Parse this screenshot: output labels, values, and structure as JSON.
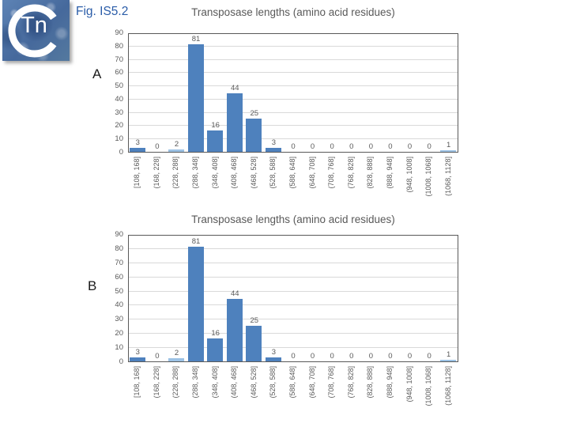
{
  "logo": {
    "text": "Tn"
  },
  "figure_label": "Fig. IS5.2",
  "colors": {
    "bar": "#4e81bd",
    "bar_light": "#9cc2e5",
    "grid": "#d9d9d9",
    "frame": "#595959",
    "text": "#595959",
    "figure_label": "#2a5ca8"
  },
  "chart_data": [
    {
      "type": "bar",
      "panel_label": "A",
      "title": "Transposase lengths (amino acid residues)",
      "categories": [
        "[108, 168]",
        "(168, 228]",
        "(228, 288]",
        "(288, 348]",
        "(348, 408]",
        "(408, 468]",
        "(468, 528]",
        "(528, 588]",
        "(588, 648]",
        "(648, 708]",
        "(708, 768]",
        "(768, 828]",
        "(828, 888]",
        "(888, 948]",
        "(948, 1008]",
        "(1008, 1068]",
        "(1068, 1128]"
      ],
      "values": [
        3,
        0,
        2,
        81,
        16,
        44,
        25,
        3,
        0,
        0,
        0,
        0,
        0,
        0,
        0,
        0,
        1
      ],
      "data_labels": [
        "3",
        "0",
        "2",
        "81",
        "16",
        "44",
        "25",
        "3",
        "0",
        "0",
        "0",
        "0",
        "0",
        "0",
        "0",
        "0",
        "1"
      ],
      "yticks": [
        0,
        10,
        20,
        30,
        40,
        50,
        60,
        70,
        80,
        90
      ],
      "ylim": [
        0,
        90
      ],
      "xlabel": "",
      "ylabel": "",
      "grid": "horizontal",
      "legend": "none"
    },
    {
      "type": "bar",
      "panel_label": "B",
      "title": "Transposase lengths (amino acid residues)",
      "categories": [
        "[108, 168]",
        "(168, 228]",
        "(228, 288]",
        "(288, 348]",
        "(348, 408]",
        "(408, 468]",
        "(468, 528]",
        "(528, 588]",
        "(588, 648]",
        "(648, 708]",
        "(708, 768]",
        "(768, 828]",
        "(828, 888]",
        "(888, 948]",
        "(948, 1008]",
        "(1008, 1068]",
        "(1068, 1128]"
      ],
      "values": [
        3,
        0,
        2,
        81,
        16,
        44,
        25,
        3,
        0,
        0,
        0,
        0,
        0,
        0,
        0,
        0,
        1
      ],
      "data_labels": [
        "3",
        "0",
        "2",
        "81",
        "16",
        "44",
        "25",
        "3",
        "0",
        "0",
        "0",
        "0",
        "0",
        "0",
        "0",
        "0",
        "1"
      ],
      "yticks": [
        0,
        10,
        20,
        30,
        40,
        50,
        60,
        70,
        80,
        90
      ],
      "ylim": [
        0,
        90
      ],
      "xlabel": "",
      "ylabel": "",
      "grid": "horizontal",
      "legend": "none"
    }
  ]
}
